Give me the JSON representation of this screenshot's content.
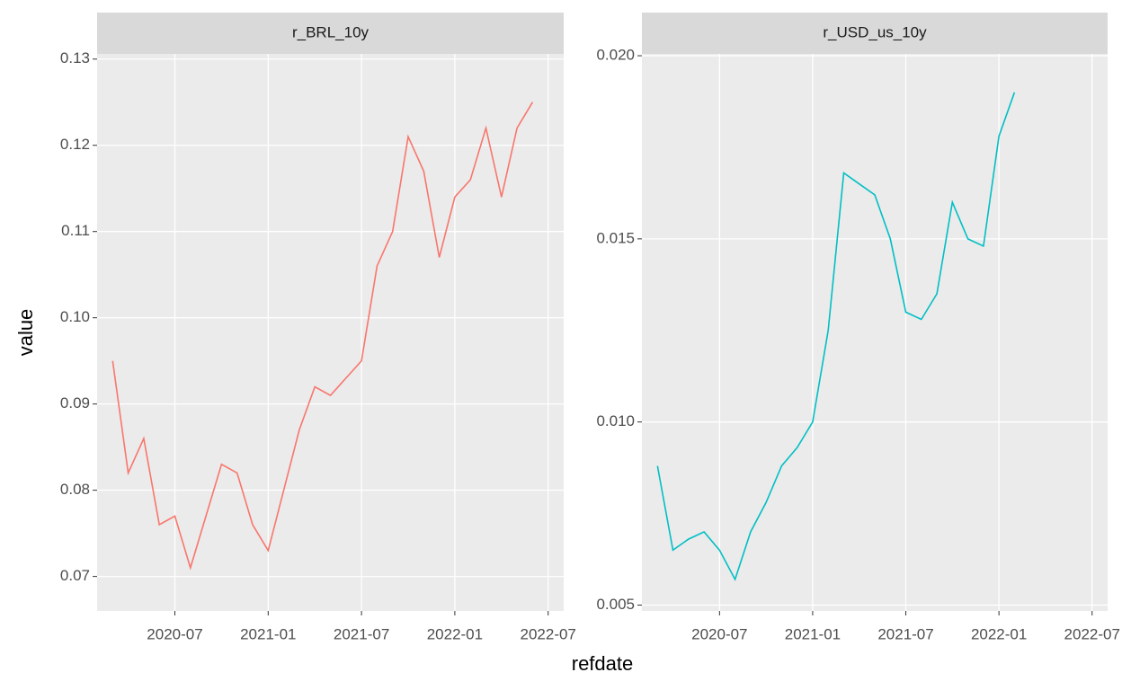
{
  "chart_data": {
    "type": "line",
    "x_label": "refdate",
    "y_label": "value",
    "xlim": [
      "2020-02",
      "2022-08"
    ],
    "xticks": [
      "2020-07",
      "2021-01",
      "2021-07",
      "2022-01",
      "2022-07"
    ],
    "grid": true,
    "facets": [
      {
        "title": "r_BRL_10y",
        "color": "#F8766D",
        "x": [
          "2020-03",
          "2020-04",
          "2020-05",
          "2020-06",
          "2020-07",
          "2020-08",
          "2020-09",
          "2020-10",
          "2020-11",
          "2020-12",
          "2021-01",
          "2021-02",
          "2021-03",
          "2021-04",
          "2021-05",
          "2021-06",
          "2021-07",
          "2021-08",
          "2021-09",
          "2021-10",
          "2021-11",
          "2021-12",
          "2022-01",
          "2022-02",
          "2022-03",
          "2022-04",
          "2022-05",
          "2022-06"
        ],
        "values": [
          0.095,
          0.082,
          0.086,
          0.076,
          0.077,
          0.071,
          0.077,
          0.083,
          0.082,
          0.076,
          0.073,
          0.08,
          0.087,
          0.092,
          0.091,
          0.093,
          0.095,
          0.106,
          0.11,
          0.121,
          0.117,
          0.107,
          0.114,
          0.116,
          0.122,
          0.114,
          0.122,
          0.125
        ],
        "ylim": [
          0.066,
          0.1306
        ],
        "yticks": [
          0.07,
          0.08,
          0.09,
          {
            "value": 0.1,
            "label": "0.10"
          },
          0.11,
          0.12,
          0.13
        ]
      },
      {
        "title": "r_USD_us_10y",
        "color": "#00BFC4",
        "x": [
          "2020-03",
          "2020-04",
          "2020-05",
          "2020-06",
          "2020-07",
          "2020-08",
          "2020-09",
          "2020-10",
          "2020-11",
          "2020-12",
          "2021-01",
          "2021-02",
          "2021-03",
          "2021-04",
          "2021-05",
          "2021-06",
          "2021-07",
          "2021-08",
          "2021-09",
          "2021-10",
          "2021-11",
          "2021-12",
          "2022-01",
          "2022-02"
        ],
        "values": [
          0.0088,
          0.0065,
          0.0068,
          0.007,
          0.0065,
          0.0057,
          0.007,
          0.0078,
          0.0088,
          0.0093,
          0.01,
          0.0125,
          0.0168,
          0.0165,
          0.0162,
          0.015,
          0.013,
          0.0128,
          0.0135,
          0.016,
          0.015,
          0.0148,
          0.0178,
          0.019
        ],
        "ylim": [
          0.00484,
          0.02005
        ],
        "yticks": [
          0.005,
          {
            "value": 0.01,
            "label": "0.010"
          },
          {
            "value": 0.015,
            "label": "0.015"
          },
          {
            "value": 0.02,
            "label": "0.020"
          }
        ]
      }
    ]
  }
}
